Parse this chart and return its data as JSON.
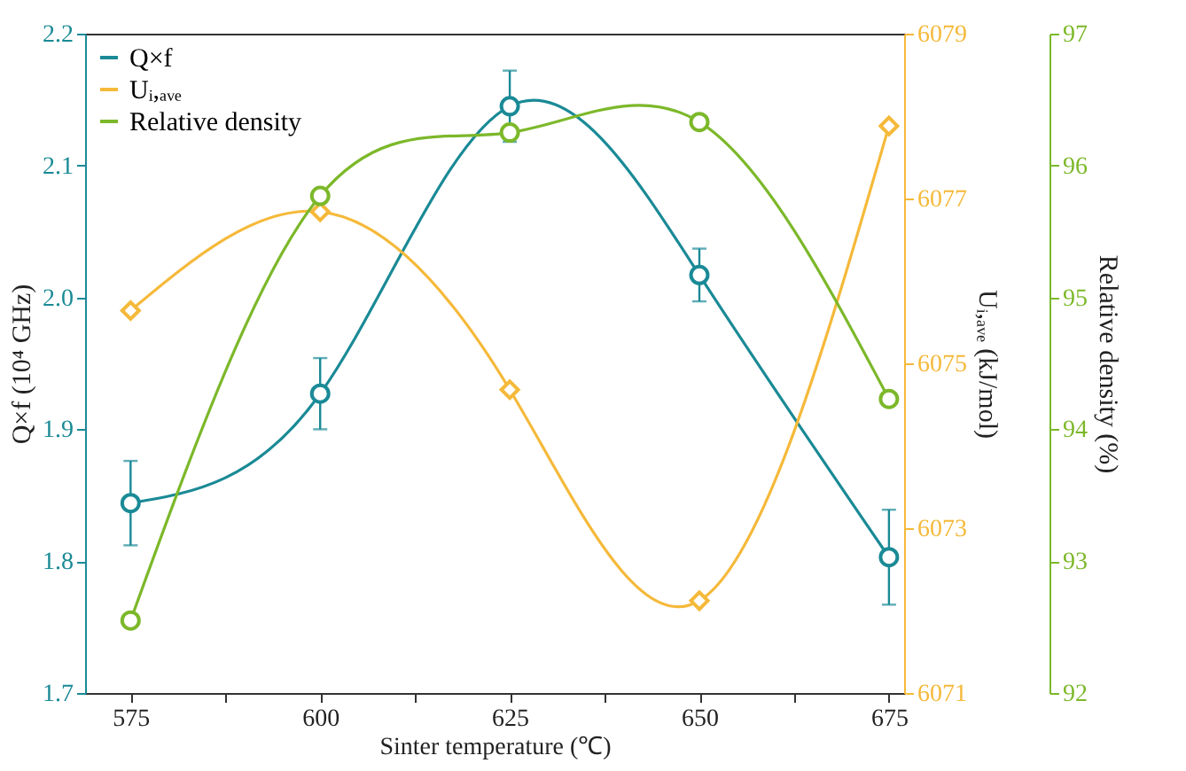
{
  "chart_data": {
    "type": "line",
    "xlabel": "Sinter temperature (℃)",
    "ylabel": "Q×f (10⁴ GHz)",
    "y2label": "Uᵢ,ₐᵥₑ (kJ/mol)",
    "y3label": "Relative density (%)",
    "x": [
      575,
      600,
      625,
      650,
      675
    ],
    "xlim": [
      569,
      677
    ],
    "xticks": [
      575,
      {
        "value": 587.5,
        "label": null
      },
      600,
      {
        "value": 612.5,
        "label": null
      },
      625,
      {
        "value": 637.5,
        "label": null
      },
      650,
      {
        "value": 662.5,
        "label": null
      },
      675
    ],
    "ylim": [
      1.7,
      2.2
    ],
    "yticks": [
      1.7,
      1.8,
      1.9,
      {
        "value": 2,
        "label": "2.0"
      },
      2.1,
      2.2
    ],
    "y2lim": [
      6071,
      6079
    ],
    "y2ticks": [
      6071,
      6073,
      6075,
      6077,
      6079
    ],
    "y3lim": [
      92,
      97
    ],
    "y3ticks": [
      92,
      93,
      94,
      95,
      96,
      97
    ],
    "series": [
      {
        "name": "Q×f",
        "color": "#1a8a96",
        "marker": "circle",
        "values": [
          1.844,
          1.927,
          2.145,
          2.017,
          1.803
        ],
        "errors": [
          0.032,
          0.027,
          0.027,
          0.02,
          0.036
        ]
      },
      {
        "name": "Uᵢ,ₐᵥₑ",
        "color": "#f5b93a",
        "marker": "diamond",
        "axis": "y2",
        "values": [
          6075.64,
          6076.84,
          6074.68,
          6072.12,
          6077.88
        ]
      },
      {
        "name": "Relative density",
        "color": "#7cb82a",
        "marker": "circle",
        "axis": "y3",
        "values": [
          92.55,
          95.77,
          96.25,
          96.33,
          94.23
        ]
      }
    ],
    "legend": "top left",
    "grid": false
  }
}
